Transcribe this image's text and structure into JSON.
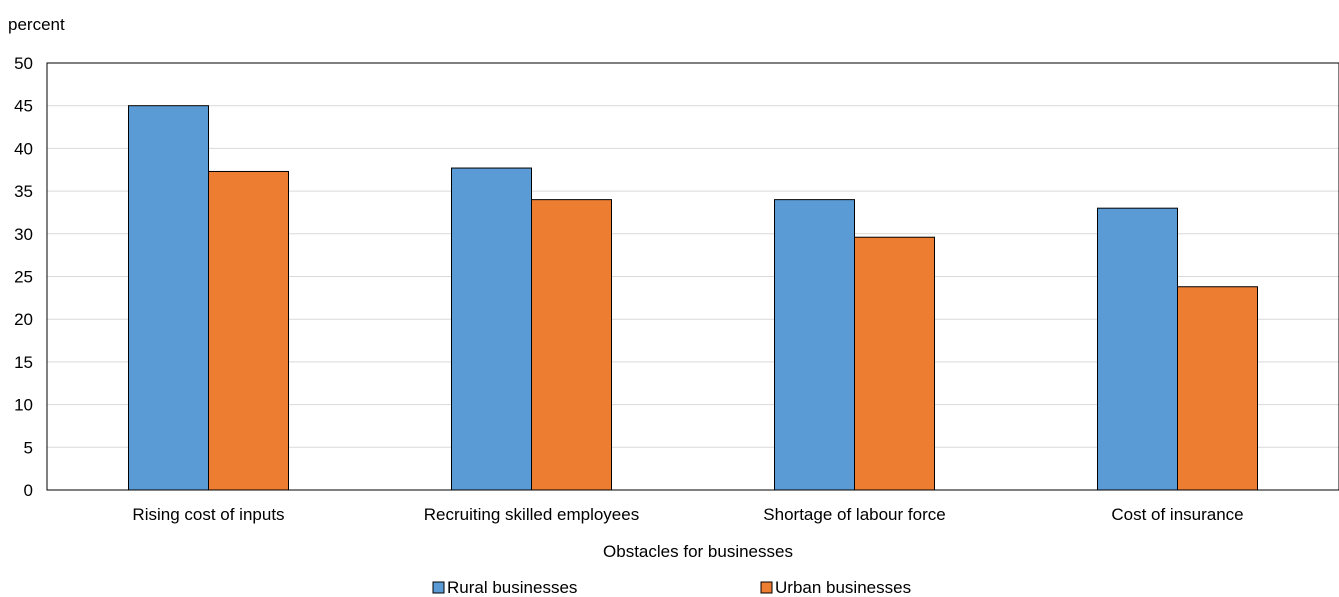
{
  "chart_data": {
    "type": "bar",
    "title": "",
    "ylabel": "percent",
    "xlabel": "Obstacles for businesses",
    "ylim": [
      0,
      50
    ],
    "yticks": [
      0,
      5,
      10,
      15,
      20,
      25,
      30,
      35,
      40,
      45,
      50
    ],
    "grid": true,
    "legend_position": "bottom",
    "categories": [
      "Rising cost of inputs",
      "Recruiting skilled employees",
      "Shortage of labour force",
      "Cost of insurance"
    ],
    "series": [
      {
        "name": "Rural businesses",
        "color": "#5B9BD5",
        "values": [
          45.0,
          37.7,
          34.0,
          33.0
        ]
      },
      {
        "name": "Urban businesses",
        "color": "#ED7D31",
        "values": [
          37.3,
          34.0,
          29.6,
          23.8
        ]
      }
    ]
  }
}
